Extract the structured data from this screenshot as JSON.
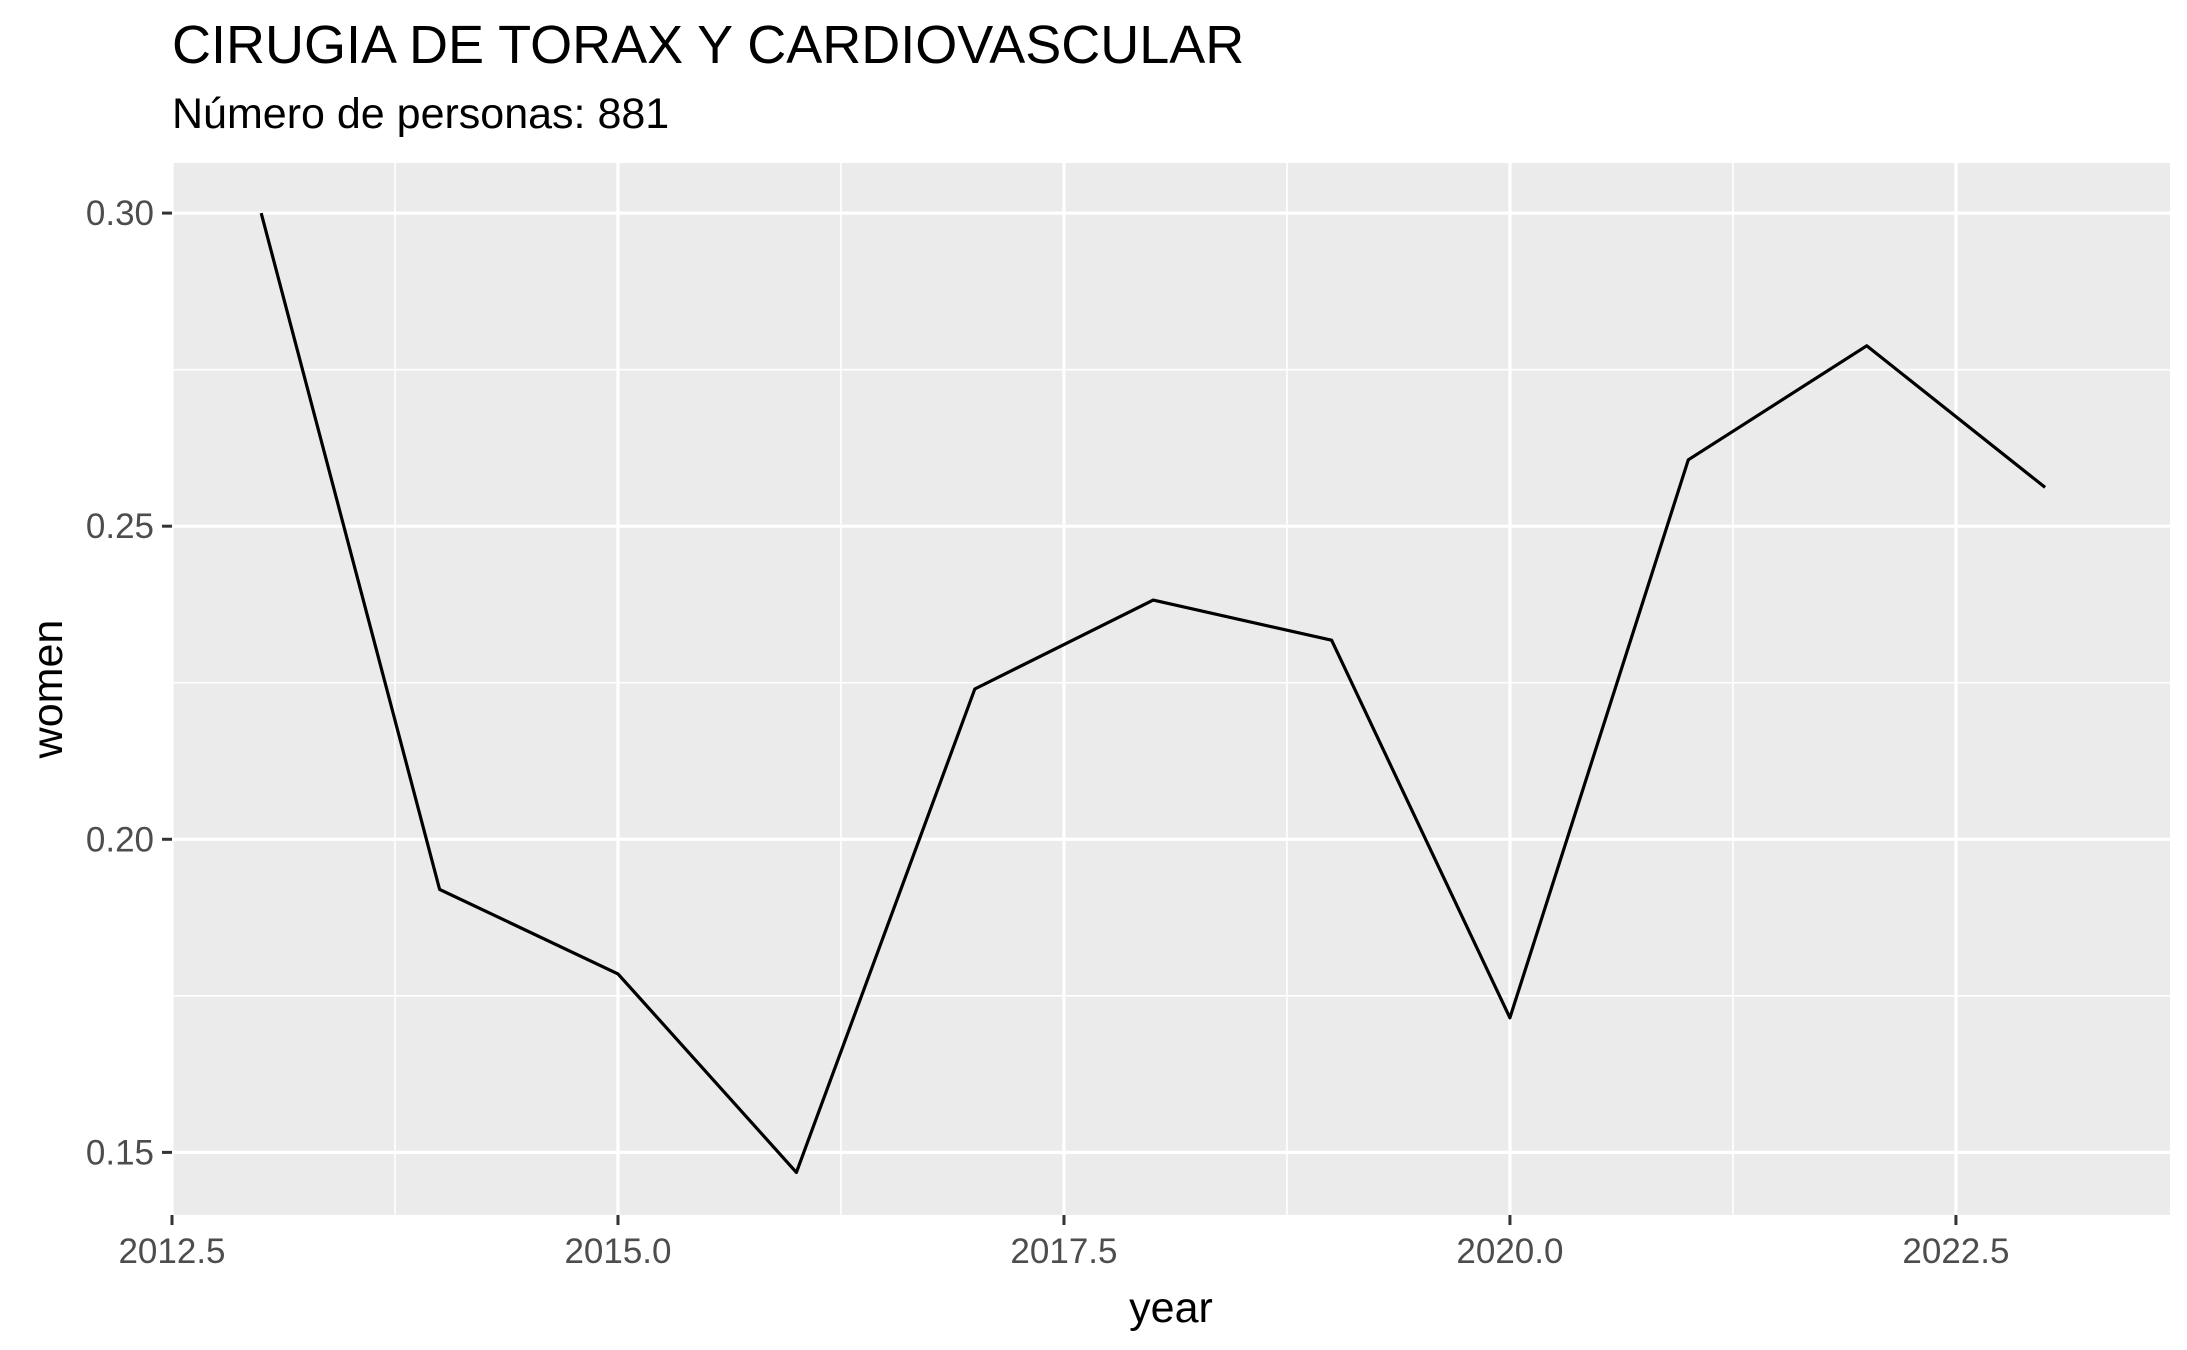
{
  "chart_data": {
    "type": "line",
    "title": "CIRUGIA DE TORAX Y CARDIOVASCULAR",
    "subtitle": "Número de personas: 881",
    "xlabel": "year",
    "ylabel": "women",
    "x": [
      2013,
      2014,
      2015,
      2016,
      2017,
      2018,
      2019,
      2020,
      2021,
      2022,
      2023
    ],
    "series": [
      {
        "values": [
          0.3,
          0.192,
          0.1785,
          0.1468,
          0.224,
          0.2382,
          0.2318,
          0.1715,
          0.2606,
          0.2788,
          0.2562
        ]
      }
    ],
    "xlim": [
      2012.5,
      2023.7
    ],
    "ylim": [
      0.14,
      0.308
    ],
    "x_ticks": [
      2012.5,
      2015.0,
      2017.5,
      2020.0,
      2022.5
    ],
    "x_tick_labels": [
      "2012.5",
      "2015.0",
      "2017.5",
      "2020.0",
      "2022.5"
    ],
    "y_ticks": [
      0.15,
      0.2,
      0.25,
      0.3
    ],
    "y_tick_labels": [
      "0.15",
      "0.20",
      "0.25",
      "0.30"
    ],
    "grid": true,
    "legend": "none",
    "colors": {
      "panel": "#ebebeb",
      "grid": "#ffffff",
      "line": "#000000",
      "tick_text": "#4d4d4d"
    }
  }
}
